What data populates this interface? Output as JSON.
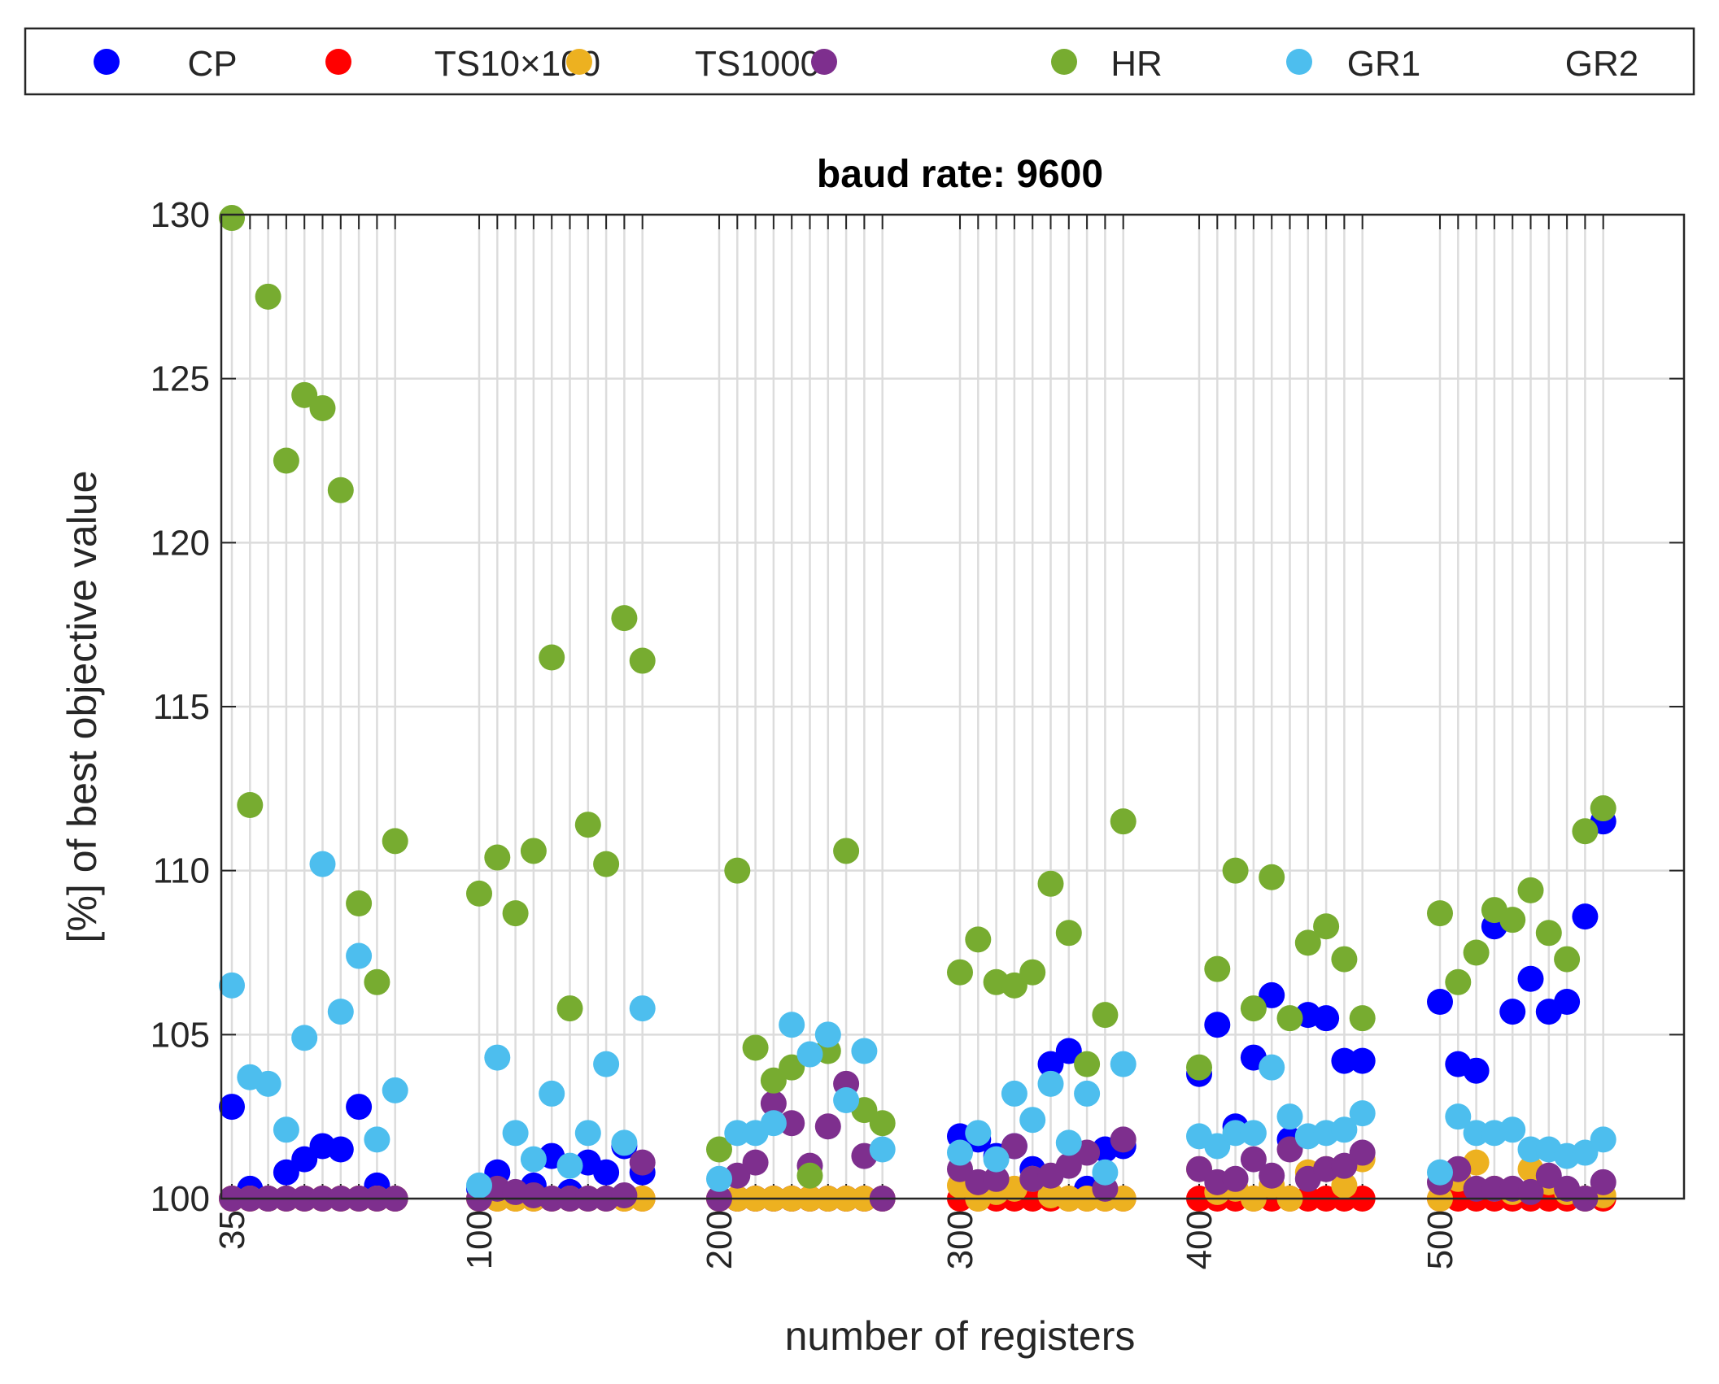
{
  "chart_data": {
    "type": "scatter",
    "title": "baud rate: 9600",
    "xlabel": "number of registers",
    "ylabel": "[%] of best objective value",
    "ylim": [
      100,
      130
    ],
    "yticks": [
      100,
      105,
      110,
      115,
      120,
      125,
      130
    ],
    "grid": true,
    "legend_position": "top",
    "group_tick_labels": [
      "35",
      "100",
      "200",
      "300",
      "400",
      "500"
    ],
    "instances_per_group": 10,
    "series": [
      {
        "name": "CP",
        "color": "#0000ff",
        "values": [
          [
            102.8,
            100.3,
            100.0,
            100.8,
            101.2,
            101.6,
            101.5,
            102.8,
            100.4,
            100.0
          ],
          [
            100.3,
            100.8,
            100.1,
            100.4,
            101.3,
            100.2,
            101.1,
            100.8,
            101.6,
            100.8
          ],
          [
            100.0,
            100.0,
            100.0,
            100.0,
            100.0,
            100.0,
            100.0,
            100.0,
            100.0,
            100.0
          ],
          [
            101.9,
            101.8,
            101.3,
            101.6,
            100.9,
            104.1,
            104.5,
            100.3,
            101.5,
            101.6
          ],
          [
            103.8,
            105.3,
            102.2,
            104.3,
            106.2,
            101.8,
            105.6,
            105.5,
            104.2,
            104.2
          ],
          [
            106.0,
            104.1,
            103.9,
            108.3,
            105.7,
            106.7,
            105.7,
            106.0,
            108.6,
            111.5
          ]
        ]
      },
      {
        "name": "TS10×100",
        "color": "#ff0000",
        "values": [
          [
            100.0,
            100.0,
            100.0,
            100.0,
            100.0,
            100.0,
            100.0,
            100.0,
            100.0,
            100.0
          ],
          [
            100.0,
            100.0,
            100.0,
            100.0,
            100.0,
            100.0,
            100.0,
            100.0,
            100.0,
            100.0
          ],
          [
            100.0,
            100.0,
            100.0,
            100.0,
            100.0,
            100.0,
            100.0,
            100.0,
            100.0,
            100.0
          ],
          [
            100.0,
            100.0,
            100.0,
            100.0,
            100.0,
            100.0,
            100.0,
            100.0,
            100.0,
            100.0
          ],
          [
            100.0,
            100.0,
            100.0,
            100.0,
            100.0,
            100.0,
            100.0,
            100.0,
            100.0,
            100.0
          ],
          [
            100.0,
            100.0,
            100.0,
            100.0,
            100.0,
            100.0,
            100.0,
            100.0,
            100.0,
            100.0
          ]
        ]
      },
      {
        "name": "TS1000",
        "color": "#edb120",
        "values": [
          [
            100.0,
            100.0,
            100.0,
            100.0,
            100.0,
            100.0,
            100.0,
            100.0,
            100.0,
            100.0
          ],
          [
            100.0,
            100.0,
            100.0,
            100.0,
            100.0,
            100.0,
            100.0,
            100.0,
            100.0,
            100.0
          ],
          [
            100.0,
            100.0,
            100.0,
            100.0,
            100.0,
            100.0,
            100.0,
            100.0,
            100.0,
            100.0
          ],
          [
            100.4,
            100.0,
            100.2,
            100.3,
            100.6,
            100.1,
            100.0,
            100.0,
            100.0,
            100.0
          ],
          [
            100.9,
            100.2,
            100.3,
            100.0,
            100.4,
            100.0,
            100.8,
            100.9,
            100.4,
            101.2
          ],
          [
            100.0,
            100.6,
            101.1,
            100.3,
            100.2,
            100.9,
            100.5,
            100.2,
            100.0,
            100.1
          ]
        ]
      },
      {
        "name": "HR",
        "color": "#7e2f8e",
        "values": [
          [
            100.0,
            100.0,
            100.0,
            100.0,
            100.0,
            100.0,
            100.0,
            100.0,
            100.0,
            100.0
          ],
          [
            100.0,
            100.3,
            100.2,
            100.1,
            100.0,
            100.0,
            100.0,
            100.0,
            100.1,
            101.1
          ],
          [
            100.0,
            100.7,
            101.1,
            102.9,
            102.3,
            101.0,
            102.2,
            103.5,
            101.3,
            100.0
          ],
          [
            100.9,
            100.5,
            100.6,
            101.6,
            100.6,
            100.7,
            101.0,
            101.4,
            100.3,
            101.8
          ],
          [
            100.9,
            100.5,
            100.6,
            101.2,
            100.7,
            101.5,
            100.6,
            100.9,
            101.0,
            101.4
          ],
          [
            100.5,
            100.9,
            100.3,
            100.3,
            100.3,
            100.2,
            100.7,
            100.3,
            100.0,
            100.5
          ]
        ]
      },
      {
        "name": "GR1",
        "color": "#77ac30",
        "values": [
          [
            129.9,
            112.0,
            127.5,
            122.5,
            124.5,
            124.1,
            121.6,
            109.0,
            106.6,
            110.9
          ],
          [
            109.3,
            110.4,
            108.7,
            110.6,
            116.5,
            105.8,
            111.4,
            110.2,
            117.7,
            116.4
          ],
          [
            101.5,
            110.0,
            104.6,
            103.6,
            104.0,
            100.7,
            104.5,
            110.6,
            102.7,
            102.3
          ],
          [
            106.9,
            107.9,
            106.6,
            106.5,
            106.9,
            109.6,
            108.1,
            104.1,
            105.6,
            111.5
          ],
          [
            104.0,
            107.0,
            110.0,
            105.8,
            109.8,
            105.5,
            107.8,
            108.3,
            107.3,
            105.5
          ],
          [
            108.7,
            106.6,
            107.5,
            108.8,
            108.5,
            109.4,
            108.1,
            107.3,
            111.2,
            111.9
          ]
        ]
      },
      {
        "name": "GR2",
        "color": "#4dbeee",
        "values": [
          [
            106.5,
            103.7,
            103.5,
            102.1,
            104.9,
            110.2,
            105.7,
            107.4,
            101.8,
            103.3
          ],
          [
            100.4,
            104.3,
            102.0,
            101.2,
            103.2,
            101.0,
            102.0,
            104.1,
            101.7,
            105.8
          ],
          [
            100.6,
            102.0,
            102.0,
            102.3,
            105.3,
            104.4,
            105.0,
            103.0,
            104.5,
            101.5
          ],
          [
            101.4,
            102.0,
            101.2,
            103.2,
            102.4,
            103.5,
            101.7,
            103.2,
            100.8,
            104.1
          ],
          [
            101.9,
            101.6,
            102.0,
            102.0,
            104.0,
            102.5,
            101.9,
            102.0,
            102.1,
            102.6
          ],
          [
            100.8,
            102.5,
            102.0,
            102.0,
            102.1,
            101.5,
            101.5,
            101.3,
            101.4,
            101.8
          ]
        ]
      }
    ]
  }
}
